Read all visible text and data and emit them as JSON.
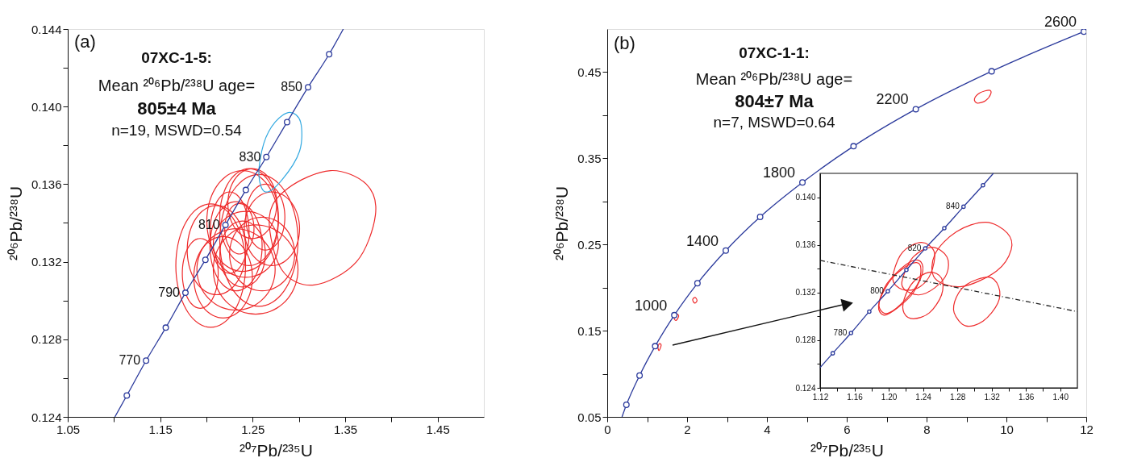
{
  "chart_data": [
    {
      "type": "line",
      "xlabel": "²⁰⁷Pb/²³⁵U",
      "ylabel": "²⁰⁶Pb/²³⁸U",
      "xlim": [
        1.05,
        1.5
      ],
      "ylim": [
        0.124,
        0.144
      ],
      "xticks": [
        1.05,
        {
          "value": 1.1,
          "label": null
        },
        1.15,
        {
          "value": 1.2,
          "label": null
        },
        1.25,
        {
          "value": 1.3,
          "label": null
        },
        1.35,
        {
          "value": 1.4,
          "label": null
        },
        1.45
      ],
      "yticks": [
        0.124,
        {
          "value": 0.126,
          "label": null
        },
        0.128,
        {
          "value": 0.13,
          "label": null
        },
        0.132,
        {
          "value": 0.134,
          "label": null
        },
        0.136,
        {
          "value": 0.138,
          "label": null
        },
        {
          "value": 0.14,
          "label": "0.140"
        },
        {
          "value": 0.142,
          "label": null
        },
        0.144
      ],
      "annotations": [
        "(a)",
        "07XC-1-5:",
        "Mean ²⁰⁶Pb/²³⁸U age=",
        "805±4 Ma",
        "n=19, MSWD=0.54",
        {
          "text": "770",
          "x": 1.1347,
          "y": 0.1269
        },
        {
          "text": "790",
          "x": 1.1773,
          "y": 0.1304
        },
        {
          "text": "810",
          "x": 1.2206,
          "y": 0.1339
        },
        {
          "text": "830",
          "x": 1.2648,
          "y": 0.1374
        },
        {
          "text": "850",
          "x": 1.3099,
          "y": 0.141
        }
      ],
      "series": [
        {
          "type": "line",
          "color": "#2b3a9c",
          "x": [
            1.101,
            1.1139,
            1.1347,
            1.156,
            1.1773,
            1.1989,
            1.2206,
            1.2426,
            1.2648,
            1.2872,
            1.3099,
            1.3327,
            1.348
          ],
          "values": [
            0.124,
            0.1251,
            0.1269,
            0.1286,
            0.1304,
            0.1321,
            0.1339,
            0.1357,
            0.1374,
            0.1392,
            0.141,
            0.1427,
            0.144
          ]
        },
        {
          "type": "scatter",
          "marker": "circle",
          "color": "#2b3a9c",
          "x": [
            1.1139,
            1.1347,
            1.156,
            1.1773,
            1.1989,
            1.2206,
            1.2426,
            1.2648,
            1.2872,
            1.3099,
            1.3327
          ],
          "values": [
            0.1251,
            0.1269,
            0.1286,
            0.1304,
            0.1321,
            0.1339,
            0.1357,
            0.1374,
            0.1392,
            0.141,
            0.1427
          ]
        }
      ]
    },
    {
      "type": "line",
      "xlabel": "²⁰⁷Pb/²³⁵U",
      "ylabel": "²⁰⁶Pb/²³⁸U",
      "xlim": [
        0,
        12
      ],
      "ylim": [
        0.05,
        0.5
      ],
      "xticks": [
        0,
        {
          "value": 1,
          "label": null
        },
        2,
        {
          "value": 3,
          "label": null
        },
        4,
        {
          "value": 5,
          "label": null
        },
        6,
        {
          "value": 7,
          "label": null
        },
        8,
        {
          "value": 9,
          "label": null
        },
        10,
        {
          "value": 11,
          "label": null
        },
        12
      ],
      "yticks": [
        0.05,
        {
          "value": 0.1,
          "label": null
        },
        0.15,
        {
          "value": 0.2,
          "label": null
        },
        0.25,
        {
          "value": 0.3,
          "label": null
        },
        0.35,
        {
          "value": 0.4,
          "label": null
        },
        0.45
      ],
      "annotations": [
        "(b)",
        "07XC-1-1:",
        "Mean ²⁰⁶Pb/²³⁸U age=",
        "804±7 Ma",
        "n=7, MSWD=0.64",
        {
          "text": "1000",
          "x": 1.68,
          "y": 0.168
        },
        {
          "text": "1400",
          "x": 2.97,
          "y": 0.243
        },
        {
          "text": "1800",
          "x": 4.89,
          "y": 0.322
        },
        {
          "text": "2200",
          "x": 7.73,
          "y": 0.407
        },
        {
          "text": "2600",
          "x": 11.94,
          "y": 0.497
        }
      ],
      "series": [
        {
          "type": "line",
          "color": "#2b3a9c",
          "x": [
            0.37,
            0.48,
            0.81,
            1.2,
            1.68,
            2.26,
            2.97,
            3.83,
            4.89,
            6.17,
            7.73,
            9.63,
            11.94
          ],
          "values": [
            0.05,
            0.064,
            0.098,
            0.132,
            0.168,
            0.205,
            0.243,
            0.282,
            0.322,
            0.364,
            0.407,
            0.451,
            0.497
          ]
        },
        {
          "type": "scatter",
          "marker": "circle",
          "color": "#2b3a9c",
          "x": [
            0.48,
            0.81,
            1.2,
            1.68,
            2.26,
            2.97,
            3.83,
            4.89,
            6.17,
            7.73,
            9.63,
            11.94
          ],
          "values": [
            0.064,
            0.098,
            0.132,
            0.168,
            0.205,
            0.243,
            0.282,
            0.322,
            0.364,
            0.407,
            0.451,
            0.497
          ]
        }
      ]
    },
    {
      "type": "line",
      "xlim": [
        1.12,
        1.42
      ],
      "ylim": [
        0.124,
        0.142
      ],
      "xticks": [
        1.12,
        {
          "value": 1.14,
          "label": null
        },
        1.16,
        {
          "value": 1.18,
          "label": null
        },
        {
          "value": 1.2,
          "label": "1.20"
        },
        {
          "value": 1.22,
          "label": null
        },
        1.24,
        {
          "value": 1.26,
          "label": null
        },
        1.28,
        {
          "value": 1.3,
          "label": null
        },
        1.32,
        {
          "value": 1.34,
          "label": null
        },
        1.36,
        {
          "value": 1.38,
          "label": null
        },
        {
          "value": 1.4,
          "label": "1.40"
        }
      ],
      "yticks": [
        0.124,
        {
          "value": 0.126,
          "label": null
        },
        0.128,
        {
          "value": 0.13,
          "label": null
        },
        0.132,
        {
          "value": 0.134,
          "label": null
        },
        0.136,
        {
          "value": 0.138,
          "label": null
        },
        {
          "value": 0.14,
          "label": "0.140"
        }
      ],
      "annotations": [
        {
          "text": "780",
          "x": 1.156,
          "y": 0.1286
        },
        {
          "text": "800",
          "x": 1.1989,
          "y": 0.1321
        },
        {
          "text": "820",
          "x": 1.2426,
          "y": 0.1357
        },
        {
          "text": "840",
          "x": 1.2872,
          "y": 0.1392
        }
      ],
      "series": [
        {
          "type": "line",
          "color": "#2b3a9c",
          "x": [
            1.12,
            1.1347,
            1.156,
            1.1773,
            1.1989,
            1.2206,
            1.2426,
            1.2648,
            1.2872,
            1.3099,
            1.322
          ],
          "values": [
            0.1257,
            0.1269,
            0.1286,
            0.1304,
            0.1321,
            0.1339,
            0.1357,
            0.1374,
            0.1392,
            0.141,
            0.142
          ]
        },
        {
          "type": "line",
          "color": "#222222",
          "line_style": "dashed",
          "x": [
            1.12,
            1.42
          ],
          "values": [
            0.1347,
            0.1304
          ]
        },
        {
          "type": "scatter",
          "marker": "circle",
          "color": "#2b3a9c",
          "x": [
            1.1347,
            1.156,
            1.1773,
            1.1989,
            1.2206,
            1.2426,
            1.2648,
            1.2872,
            1.3099
          ],
          "values": [
            0.1269,
            0.1286,
            0.1304,
            0.1321,
            0.1339,
            0.1357,
            0.1374,
            0.1392,
            0.141
          ]
        }
      ]
    }
  ]
}
